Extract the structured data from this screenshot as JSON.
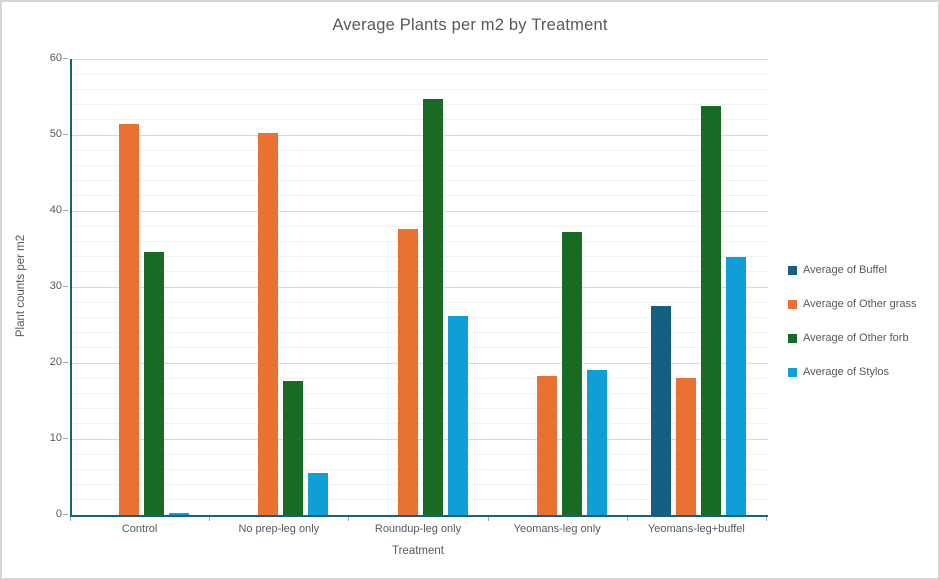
{
  "chart_data": {
    "type": "bar",
    "title": "Average Plants per m2 by Treatment",
    "xlabel": "Treatment",
    "ylabel": "Plant counts per m2",
    "ylim": [
      0,
      60
    ],
    "y_major_step": 10,
    "y_minor_step": 2,
    "grid": true,
    "legend_position": "right",
    "categories": [
      "Control",
      "No prep-leg only",
      "Roundup-leg only",
      "Yeomans-leg only",
      "Yeomans-leg+buffel"
    ],
    "series": [
      {
        "name": "Average of Buffel",
        "color": "#156082",
        "values": [
          0,
          0,
          0,
          0,
          27.5
        ]
      },
      {
        "name": "Average of Other grass",
        "color": "#E97132",
        "values": [
          51.4,
          50.2,
          37.6,
          18.3,
          18.0
        ]
      },
      {
        "name": "Average of Other forb",
        "color": "#196B24",
        "values": [
          34.6,
          17.6,
          54.7,
          37.3,
          53.8
        ]
      },
      {
        "name": "Average of Stylos",
        "color": "#0F9ED5",
        "values": [
          0.2,
          5.5,
          26.2,
          19.1,
          33.9
        ]
      }
    ]
  },
  "colors": {
    "text": "#595959",
    "axis_line": "#156082",
    "grid_major": "#D9D9D9",
    "grid_minor": "#F2F2F2",
    "tick_mark": "#A6A6A6",
    "background": "#FFFFFF",
    "canvas_border": "#D6D6D6"
  }
}
